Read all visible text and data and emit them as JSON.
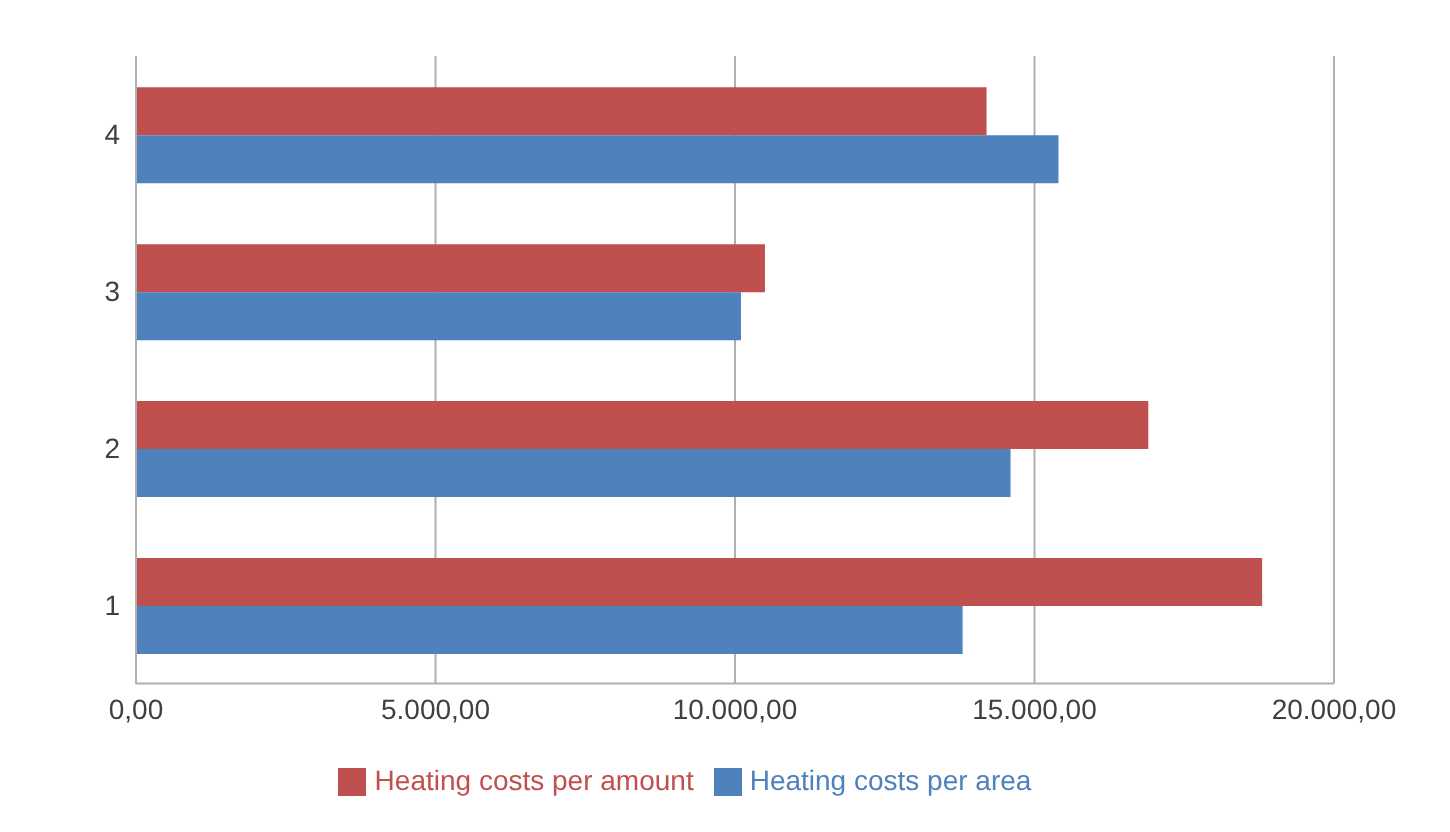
{
  "chart_data": {
    "type": "bar",
    "orientation": "horizontal",
    "categories": [
      "4",
      "3",
      "2",
      "1"
    ],
    "series": [
      {
        "name": "Heating costs per amount",
        "color": "#c0504d",
        "values": [
          14200,
          10500,
          16900,
          18800
        ]
      },
      {
        "name": "Heating costs per area",
        "color": "#4f81bd",
        "values": [
          15400,
          10100,
          14600,
          13800
        ]
      }
    ],
    "xlim": [
      0,
      20000
    ],
    "xticks": [
      {
        "value": 0,
        "label": "0,00"
      },
      {
        "value": 5000,
        "label": "5.000,00"
      },
      {
        "value": 10000,
        "label": "10.000,00"
      },
      {
        "value": 15000,
        "label": "15.000,00"
      },
      {
        "value": 20000,
        "label": "20.000,00"
      }
    ],
    "grid": "x",
    "legend": "bottom"
  }
}
